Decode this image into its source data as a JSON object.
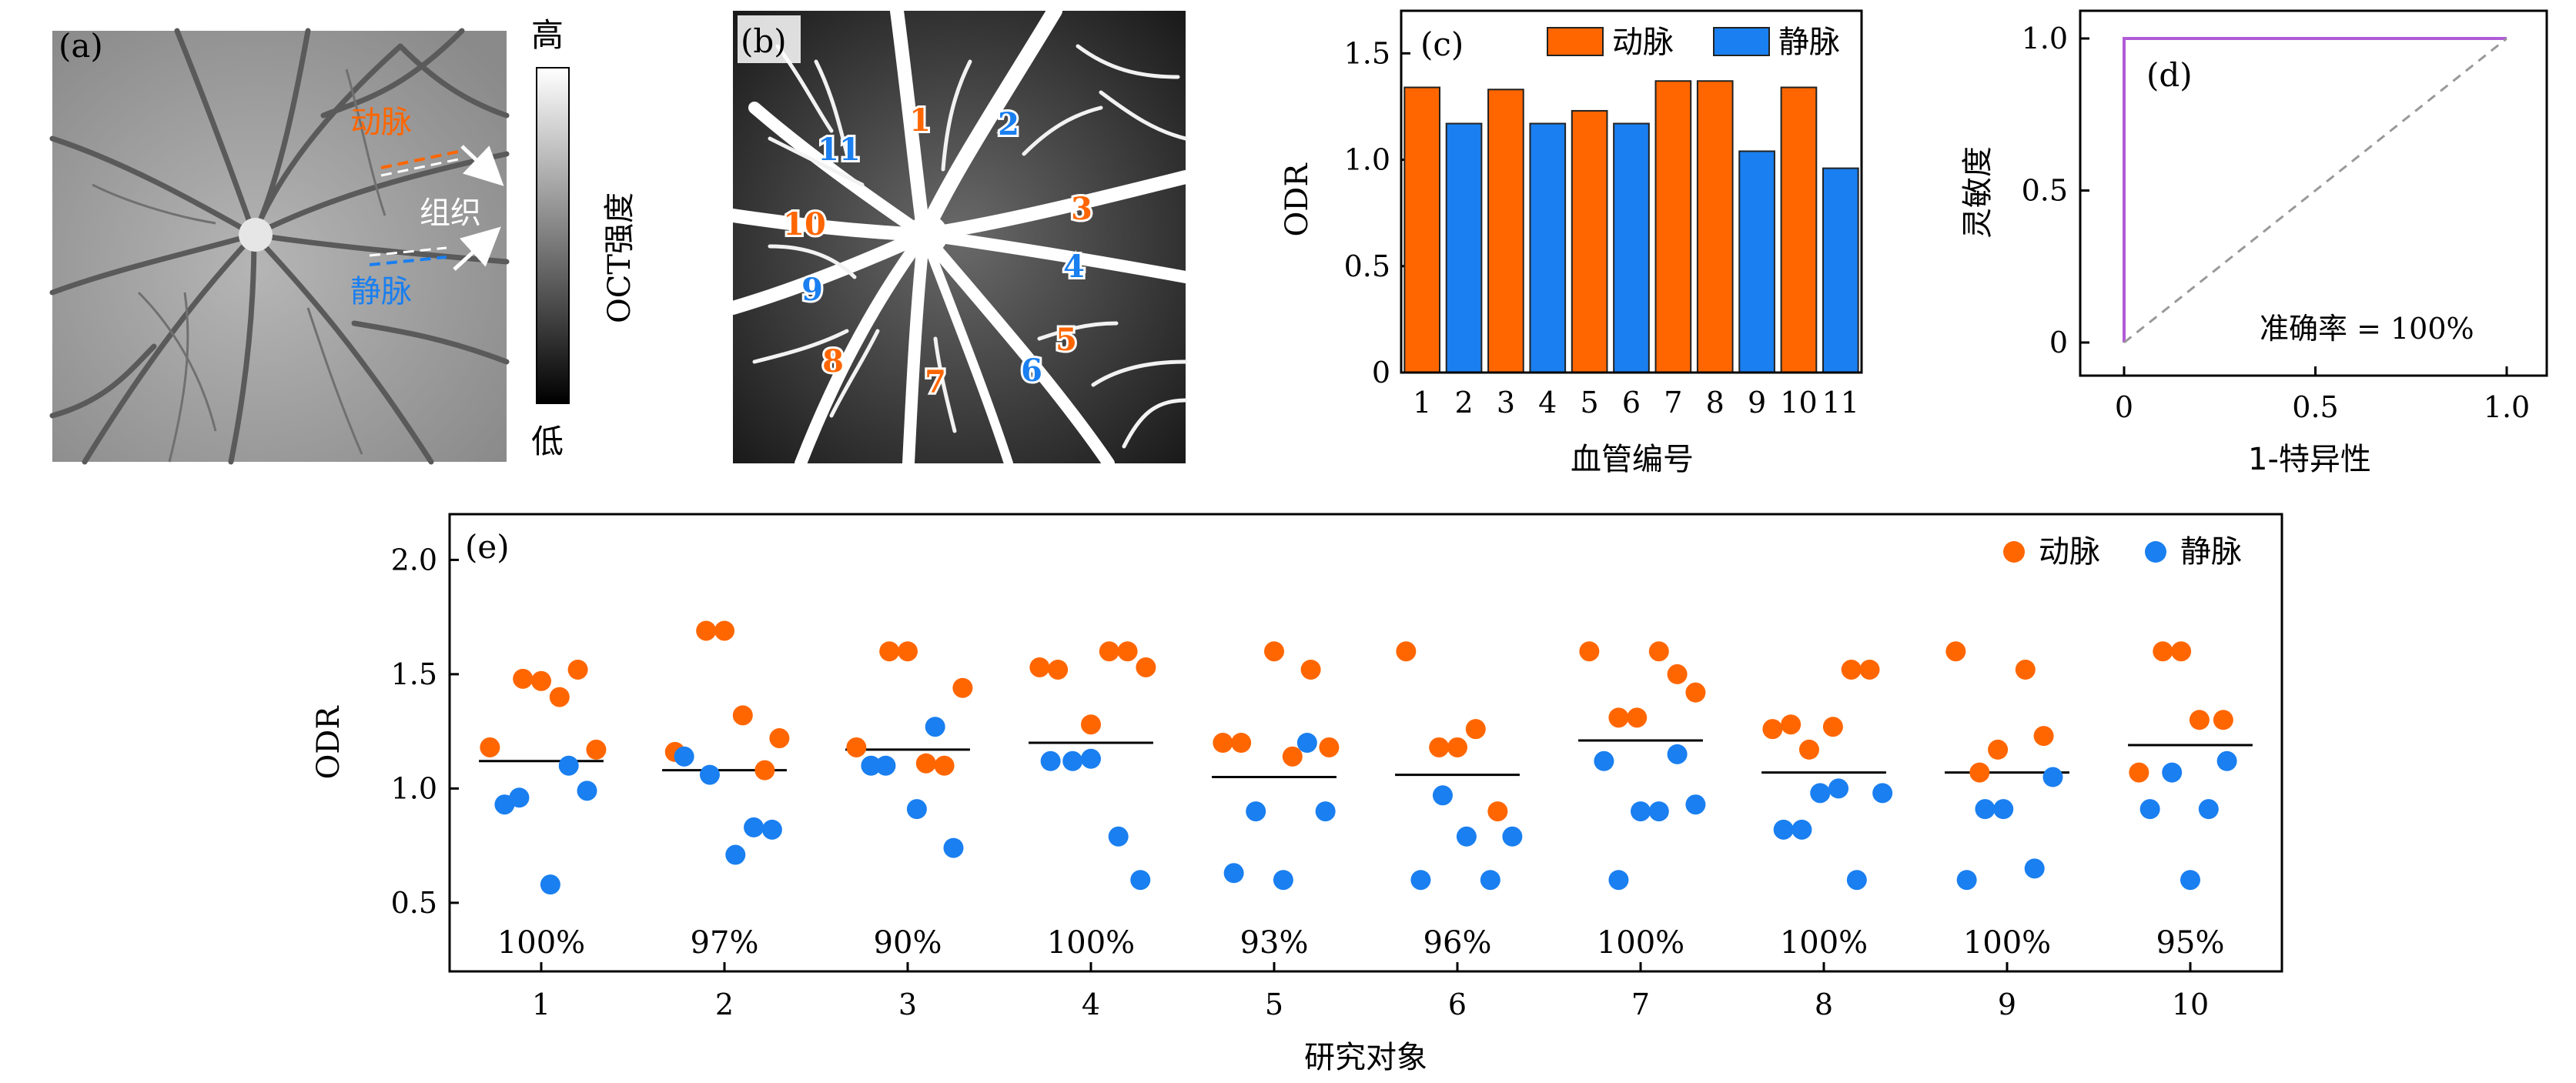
{
  "colors": {
    "artery": "#ff6600",
    "vein": "#1a7ff0",
    "roc": "#b15bd8",
    "chance": "#999999",
    "bar_edge": "#222222",
    "panel_e_bg": "#ffffff"
  },
  "panel_a": {
    "label": "(a)",
    "artery_text": "动脉",
    "tissue_text": "组织",
    "vein_text": "静脉",
    "colorbar_high": "高",
    "colorbar_low": "低",
    "colorbar_title": "OCT强度"
  },
  "panel_b": {
    "label": "(b)",
    "vessel_labels": [
      {
        "text": "1",
        "kind": "artery"
      },
      {
        "text": "2",
        "kind": "vein"
      },
      {
        "text": "3",
        "kind": "artery"
      },
      {
        "text": "4",
        "kind": "vein"
      },
      {
        "text": "5",
        "kind": "artery"
      },
      {
        "text": "6",
        "kind": "vein"
      },
      {
        "text": "7",
        "kind": "artery"
      },
      {
        "text": "8",
        "kind": "artery"
      },
      {
        "text": "9",
        "kind": "vein"
      },
      {
        "text": "10",
        "kind": "artery"
      },
      {
        "text": "11",
        "kind": "vein"
      }
    ]
  },
  "chart_data": [
    {
      "id": "c",
      "type": "bar",
      "panel_label": "(c)",
      "xlabel": "血管编号",
      "ylabel": "ODR",
      "ylim": [
        0,
        1.7
      ],
      "yticks": [
        0,
        0.5,
        1.0,
        1.5
      ],
      "ytick_labels": [
        "0",
        "0.5",
        "1.0",
        "1.5"
      ],
      "categories": [
        "1",
        "2",
        "3",
        "4",
        "5",
        "6",
        "7",
        "8",
        "9",
        "10",
        "11"
      ],
      "values": [
        1.34,
        1.17,
        1.33,
        1.17,
        1.23,
        1.17,
        1.37,
        1.37,
        1.04,
        1.34,
        0.96
      ],
      "kinds": [
        "artery",
        "vein",
        "artery",
        "vein",
        "artery",
        "vein",
        "artery",
        "artery",
        "vein",
        "artery",
        "vein"
      ],
      "legend": [
        {
          "name": "动脉",
          "kind": "artery"
        },
        {
          "name": "静脉",
          "kind": "vein"
        }
      ],
      "legend_position": "top-right"
    },
    {
      "id": "d",
      "type": "line",
      "panel_label": "(d)",
      "xlabel": "1-特异性",
      "ylabel": "灵敏度",
      "xlim": [
        0,
        1.0
      ],
      "ylim": [
        0,
        1.0
      ],
      "xticks": [
        0,
        0.5,
        1.0
      ],
      "xtick_labels": [
        "0",
        "0.5",
        "1.0"
      ],
      "yticks": [
        0,
        0.5,
        1.0
      ],
      "ytick_labels": [
        "0",
        "0.5",
        "1.0"
      ],
      "series": [
        {
          "kind": "roc",
          "x": [
            0,
            0,
            1.0
          ],
          "y": [
            0,
            1.0,
            1.0
          ]
        },
        {
          "kind": "chance",
          "x": [
            0,
            1.0
          ],
          "y": [
            0,
            1.0
          ]
        }
      ],
      "annotation": "准确率 = 100%"
    },
    {
      "id": "e",
      "type": "scatter",
      "panel_label": "(e)",
      "xlabel": "研究对象",
      "ylabel": "ODR",
      "xlim": [
        0.5,
        10.5
      ],
      "ylim": [
        0.2,
        2.2
      ],
      "xticks": [
        1,
        2,
        3,
        4,
        5,
        6,
        7,
        8,
        9,
        10
      ],
      "xtick_labels": [
        "1",
        "2",
        "3",
        "4",
        "5",
        "6",
        "7",
        "8",
        "9",
        "10"
      ],
      "yticks": [
        0.5,
        1.0,
        1.5,
        2.0
      ],
      "ytick_labels": [
        "0.5",
        "1.0",
        "1.5",
        "2.0"
      ],
      "legend": [
        {
          "name": "动脉",
          "kind": "artery"
        },
        {
          "name": "静脉",
          "kind": "vein"
        }
      ],
      "legend_position": "top-right",
      "subjects": [
        {
          "x": 1,
          "threshold": 1.12,
          "accuracy": "100%",
          "artery": [
            [
              0.72,
              1.18
            ],
            [
              0.9,
              1.48
            ],
            [
              1.0,
              1.47
            ],
            [
              1.1,
              1.4
            ],
            [
              1.2,
              1.52
            ],
            [
              1.3,
              1.17
            ]
          ],
          "vein": [
            [
              0.8,
              0.93
            ],
            [
              0.88,
              0.96
            ],
            [
              1.05,
              0.58
            ],
            [
              1.15,
              1.1
            ],
            [
              1.25,
              0.99
            ]
          ]
        },
        {
          "x": 2,
          "threshold": 1.08,
          "accuracy": "97%",
          "artery": [
            [
              1.73,
              1.16
            ],
            [
              1.9,
              1.69
            ],
            [
              2.0,
              1.69
            ],
            [
              2.1,
              1.32
            ],
            [
              2.22,
              1.08
            ],
            [
              2.3,
              1.22
            ]
          ],
          "vein": [
            [
              1.78,
              1.14
            ],
            [
              1.92,
              1.06
            ],
            [
              2.06,
              0.71
            ],
            [
              2.16,
              0.83
            ],
            [
              2.26,
              0.82
            ]
          ]
        },
        {
          "x": 3,
          "threshold": 1.17,
          "accuracy": "90%",
          "artery": [
            [
              2.72,
              1.18
            ],
            [
              2.9,
              1.6
            ],
            [
              3.0,
              1.6
            ],
            [
              3.1,
              1.11
            ],
            [
              3.2,
              1.1
            ],
            [
              3.3,
              1.44
            ]
          ],
          "vein": [
            [
              2.8,
              1.1
            ],
            [
              2.88,
              1.1
            ],
            [
              3.05,
              0.91
            ],
            [
              3.15,
              1.27
            ],
            [
              3.25,
              0.74
            ]
          ]
        },
        {
          "x": 4,
          "threshold": 1.2,
          "accuracy": "100%",
          "artery": [
            [
              3.72,
              1.53
            ],
            [
              3.82,
              1.52
            ],
            [
              4.0,
              1.28
            ],
            [
              4.1,
              1.6
            ],
            [
              4.2,
              1.6
            ],
            [
              4.3,
              1.53
            ]
          ],
          "vein": [
            [
              3.78,
              1.12
            ],
            [
              3.9,
              1.12
            ],
            [
              4.0,
              1.13
            ],
            [
              4.15,
              0.79
            ],
            [
              4.27,
              0.6
            ]
          ]
        },
        {
          "x": 5,
          "threshold": 1.05,
          "accuracy": "93%",
          "artery": [
            [
              4.72,
              1.2
            ],
            [
              4.82,
              1.2
            ],
            [
              5.0,
              1.6
            ],
            [
              5.1,
              1.14
            ],
            [
              5.2,
              1.52
            ],
            [
              5.3,
              1.18
            ]
          ],
          "vein": [
            [
              4.78,
              0.63
            ],
            [
              4.9,
              0.9
            ],
            [
              5.05,
              0.6
            ],
            [
              5.18,
              1.2
            ],
            [
              5.28,
              0.9
            ]
          ]
        },
        {
          "x": 6,
          "threshold": 1.06,
          "accuracy": "96%",
          "artery": [
            [
              5.72,
              1.6
            ],
            [
              5.9,
              1.18
            ],
            [
              6.0,
              1.18
            ],
            [
              6.1,
              1.26
            ],
            [
              6.22,
              0.9
            ]
          ],
          "vein": [
            [
              5.8,
              0.6
            ],
            [
              5.92,
              0.97
            ],
            [
              6.05,
              0.79
            ],
            [
              6.18,
              0.6
            ],
            [
              6.3,
              0.79
            ]
          ]
        },
        {
          "x": 7,
          "threshold": 1.21,
          "accuracy": "100%",
          "artery": [
            [
              6.72,
              1.6
            ],
            [
              6.88,
              1.31
            ],
            [
              6.98,
              1.31
            ],
            [
              7.1,
              1.6
            ],
            [
              7.2,
              1.5
            ],
            [
              7.3,
              1.42
            ]
          ],
          "vein": [
            [
              6.8,
              1.12
            ],
            [
              6.88,
              0.6
            ],
            [
              7.0,
              0.9
            ],
            [
              7.1,
              0.9
            ],
            [
              7.2,
              1.15
            ],
            [
              7.3,
              0.93
            ]
          ]
        },
        {
          "x": 8,
          "threshold": 1.07,
          "accuracy": "100%",
          "artery": [
            [
              7.72,
              1.26
            ],
            [
              7.82,
              1.28
            ],
            [
              7.92,
              1.17
            ],
            [
              8.05,
              1.27
            ],
            [
              8.15,
              1.52
            ],
            [
              8.25,
              1.52
            ]
          ],
          "vein": [
            [
              7.78,
              0.82
            ],
            [
              7.88,
              0.82
            ],
            [
              7.98,
              0.98
            ],
            [
              8.08,
              1.0
            ],
            [
              8.18,
              0.6
            ],
            [
              8.32,
              0.98
            ]
          ]
        },
        {
          "x": 9,
          "threshold": 1.07,
          "accuracy": "100%",
          "artery": [
            [
              8.72,
              1.6
            ],
            [
              8.85,
              1.07
            ],
            [
              8.95,
              1.17
            ],
            [
              9.1,
              1.52
            ],
            [
              9.2,
              1.23
            ]
          ],
          "vein": [
            [
              8.78,
              0.6
            ],
            [
              8.88,
              0.91
            ],
            [
              8.98,
              0.91
            ],
            [
              9.15,
              0.65
            ],
            [
              9.25,
              1.05
            ]
          ]
        },
        {
          "x": 10,
          "threshold": 1.19,
          "accuracy": "95%",
          "artery": [
            [
              9.72,
              1.07
            ],
            [
              9.85,
              1.6
            ],
            [
              9.95,
              1.6
            ],
            [
              10.05,
              1.3
            ],
            [
              10.18,
              1.3
            ]
          ],
          "vein": [
            [
              9.78,
              0.91
            ],
            [
              9.9,
              1.07
            ],
            [
              10.0,
              0.6
            ],
            [
              10.1,
              0.91
            ],
            [
              10.2,
              1.12
            ]
          ]
        }
      ]
    }
  ]
}
